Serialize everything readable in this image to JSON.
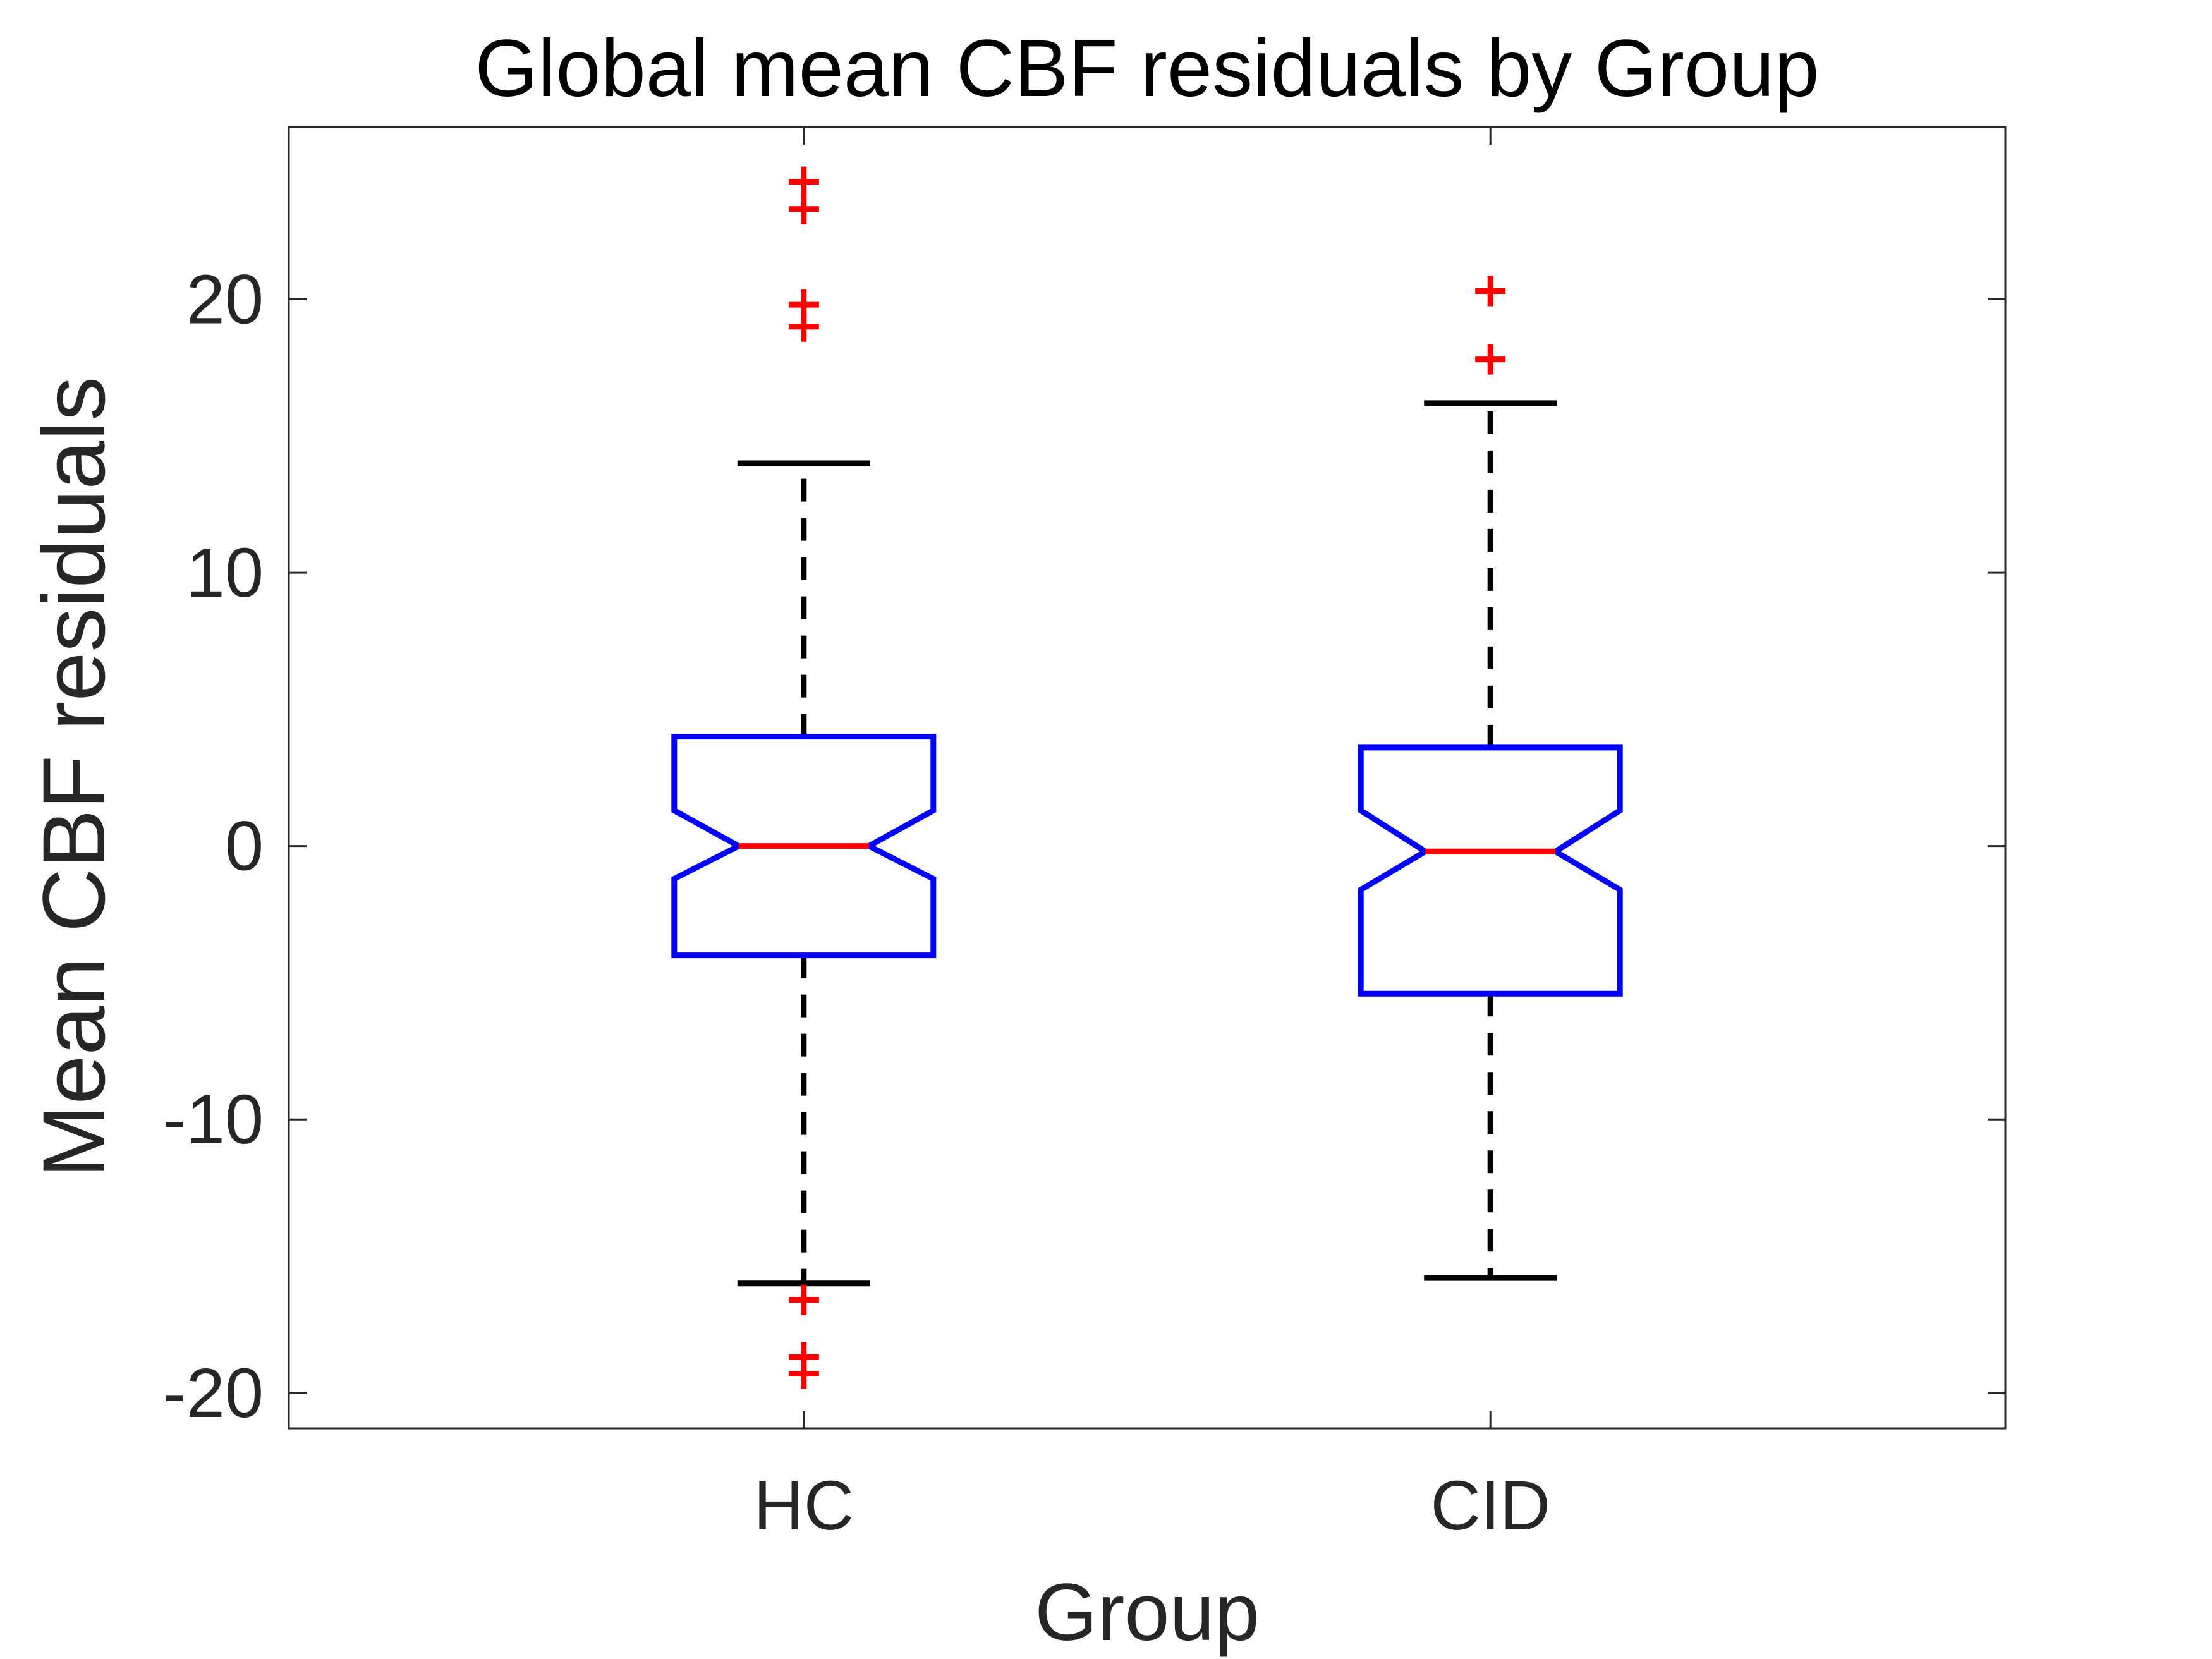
{
  "chart_data": {
    "type": "boxplot",
    "title": "Global mean CBF residuals by Group",
    "xlabel": "Group",
    "ylabel": "Mean CBF residuals",
    "ylim": [
      -21.3,
      26.3
    ],
    "yticks": [
      -20,
      -10,
      0,
      10,
      20
    ],
    "ytick_labels": [
      "-20",
      "-10",
      "0",
      "10",
      "20"
    ],
    "categories": [
      "HC",
      "CID"
    ],
    "notched": true,
    "grid": false,
    "groups": [
      {
        "name": "HC",
        "lower_whisker": -16.0,
        "q1": -4.0,
        "median": 0.0,
        "q3": 4.0,
        "upper_whisker": 14.0,
        "notch_low": -1.2,
        "notch_high": 1.3,
        "outliers": [
          24.3,
          23.3,
          19.8,
          19.0,
          -16.6,
          -18.7,
          -19.3
        ]
      },
      {
        "name": "CID",
        "lower_whisker": -15.8,
        "q1": -5.4,
        "median": -0.2,
        "q3": 3.6,
        "upper_whisker": 16.2,
        "notch_low": -1.6,
        "notch_high": 1.3,
        "outliers": [
          20.3,
          17.8
        ]
      }
    ],
    "colors": {
      "box": "#0000ff",
      "median": "#ff0000",
      "whisker": "#000000",
      "outlier": "#ff0000",
      "axis": "#262626"
    }
  }
}
